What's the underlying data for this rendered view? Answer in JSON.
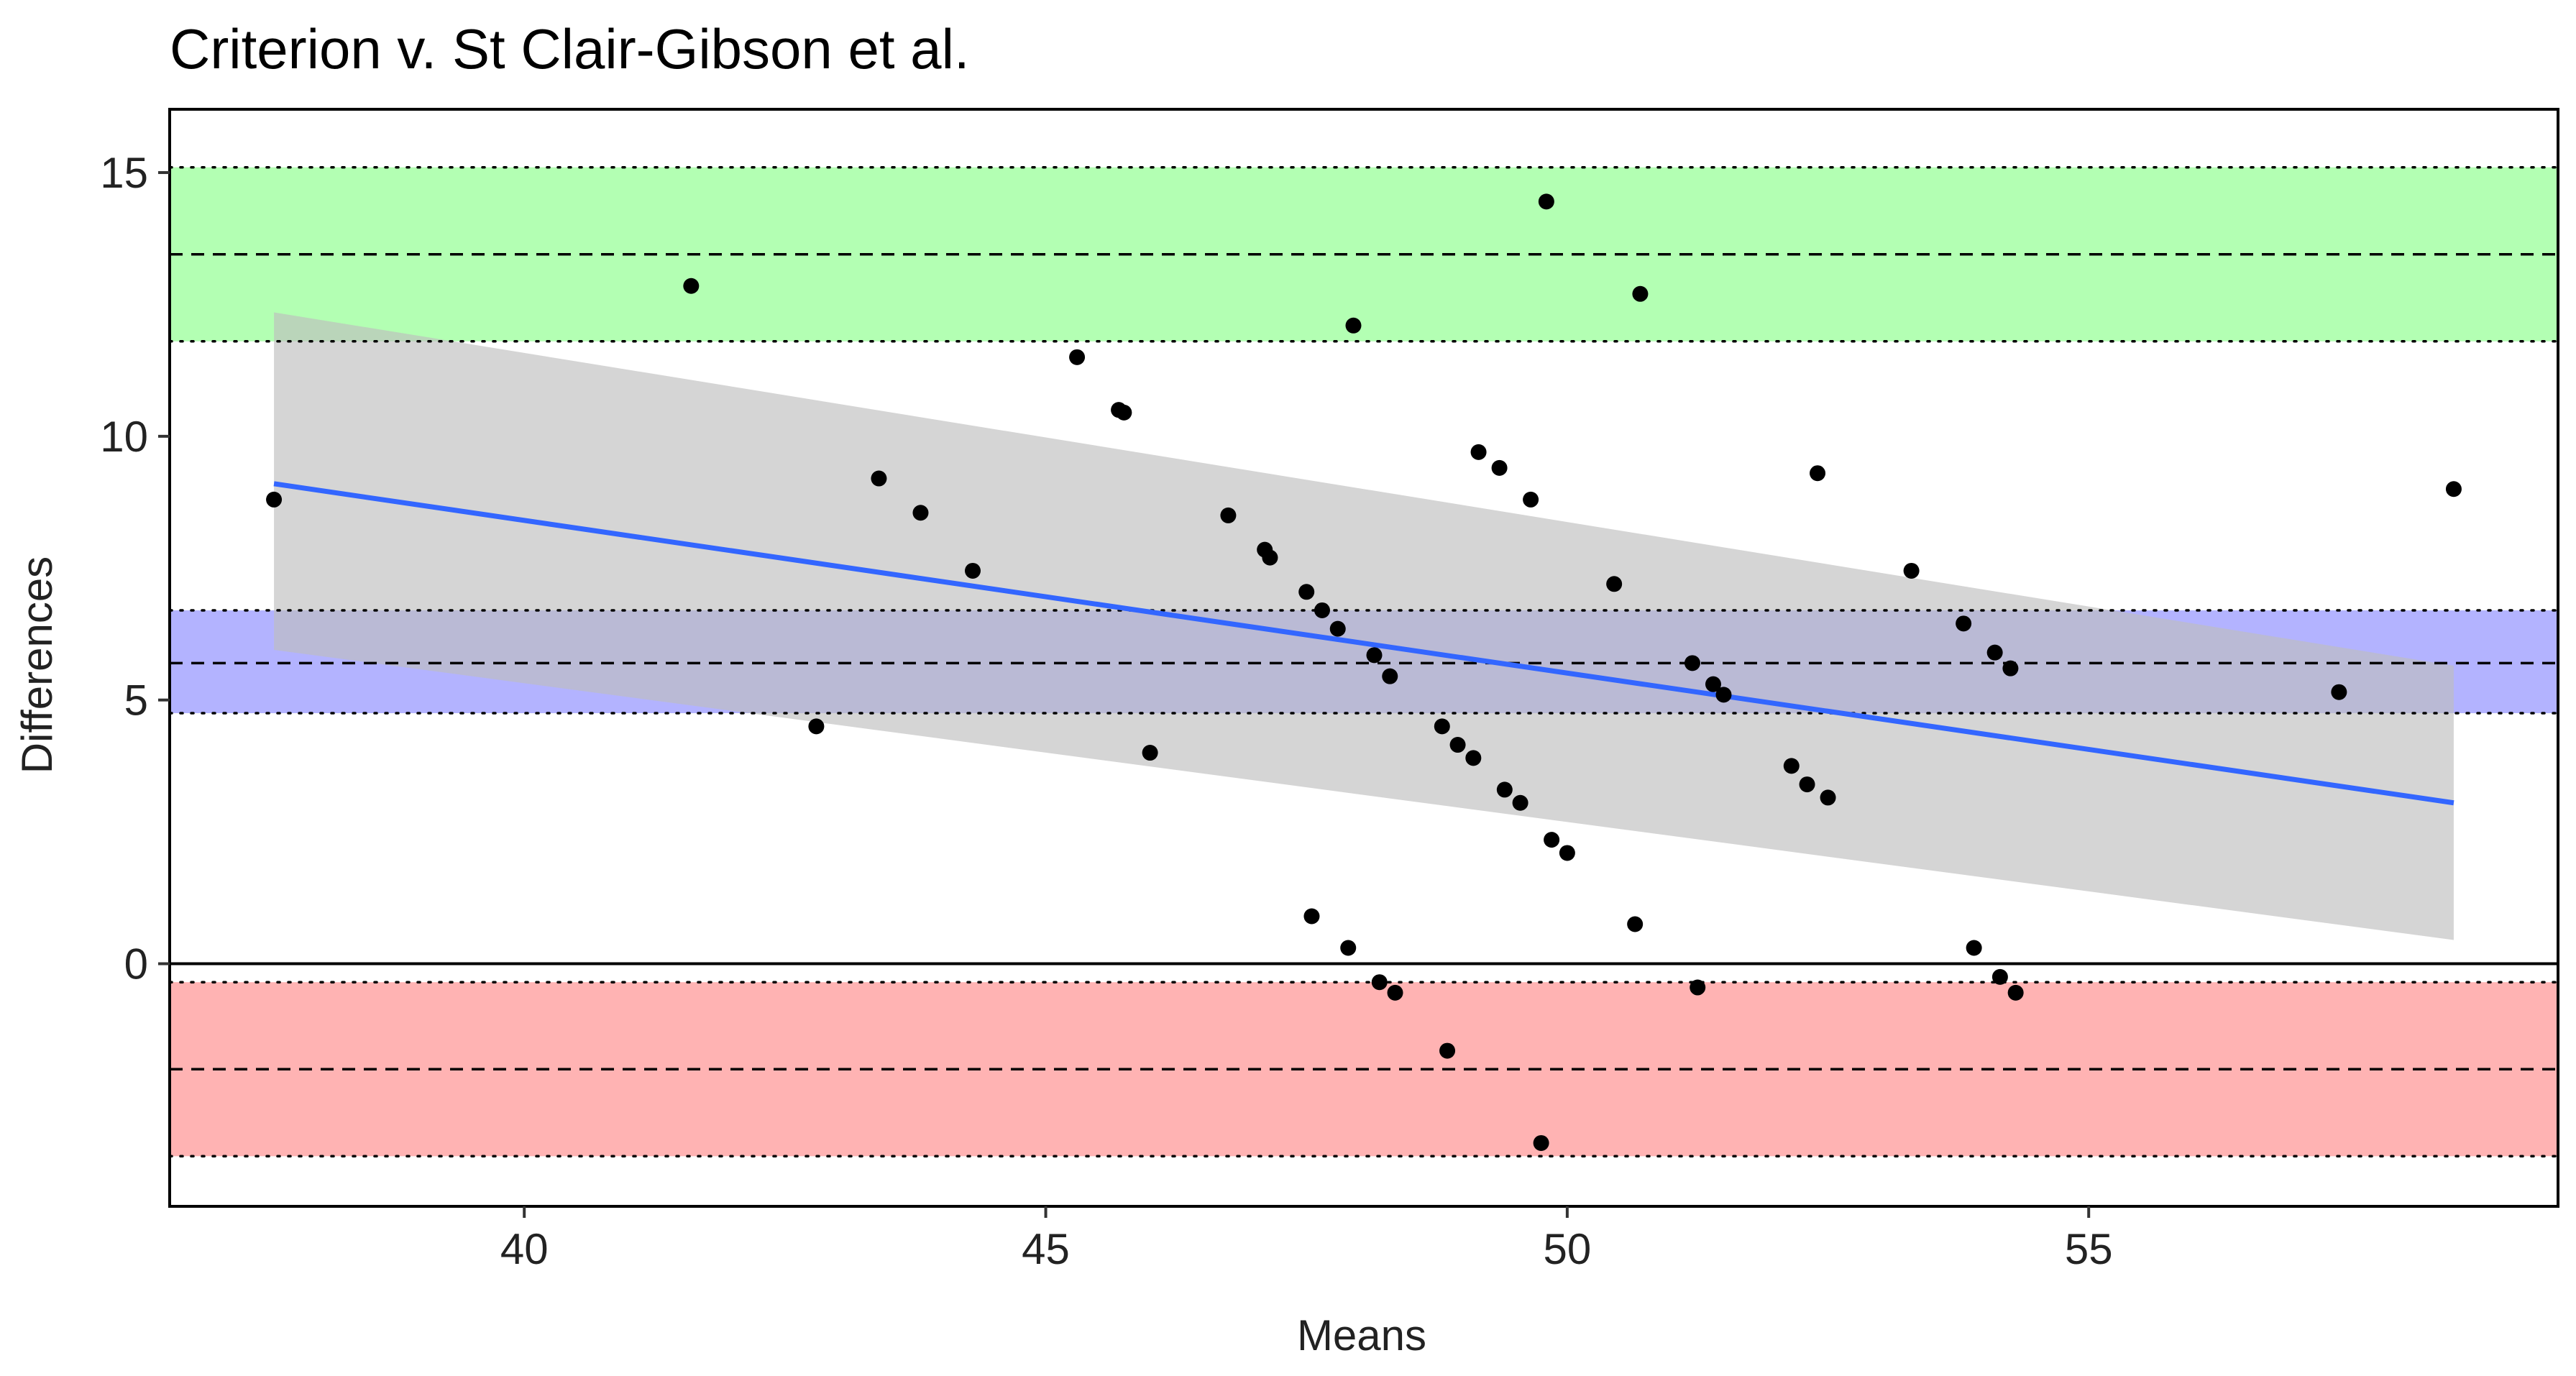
{
  "chart_data": {
    "type": "scatter",
    "title": "Criterion  v. St Clair-Gibson et al.",
    "xlabel": "Means",
    "ylabel": "Differences",
    "xlim": [
      36.6,
      59.5
    ],
    "ylim": [
      -4.6,
      16.2
    ],
    "xticks": [
      40,
      45,
      50,
      55
    ],
    "yticks": [
      0,
      5,
      10,
      15
    ],
    "grid": false,
    "legend": "none",
    "zero_line": 0,
    "bands": [
      {
        "kind": "upper limit of agreement",
        "center": 13.45,
        "lower": 11.8,
        "upper": 15.1,
        "color": "#b3ffb3"
      },
      {
        "kind": "mean difference (bias)",
        "center": 5.7,
        "lower": 4.75,
        "upper": 6.7,
        "color": "#b3b3ff"
      },
      {
        "kind": "lower limit of agreement",
        "center": -2.0,
        "lower": -3.65,
        "upper": -0.35,
        "color": "#ffb3b3"
      }
    ],
    "regression": {
      "line": [
        [
          37.6,
          9.1
        ],
        [
          58.5,
          3.05
        ]
      ],
      "ci_band": {
        "x": [
          37.6,
          58.5
        ],
        "upper": [
          12.35,
          5.65
        ],
        "lower": [
          5.95,
          0.45
        ]
      },
      "line_color": "#3366ff",
      "band_color": "#bfbfbf"
    },
    "points": [
      [
        37.6,
        8.8
      ],
      [
        41.6,
        12.85
      ],
      [
        42.8,
        4.5
      ],
      [
        43.4,
        9.2
      ],
      [
        43.8,
        8.55
      ],
      [
        44.3,
        7.45
      ],
      [
        45.3,
        11.5
      ],
      [
        45.7,
        10.5
      ],
      [
        45.75,
        10.45
      ],
      [
        46.0,
        4.0
      ],
      [
        46.75,
        8.5
      ],
      [
        47.1,
        7.85
      ],
      [
        47.15,
        7.7
      ],
      [
        47.5,
        7.05
      ],
      [
        47.55,
        0.9
      ],
      [
        47.65,
        6.7
      ],
      [
        47.8,
        6.35
      ],
      [
        47.9,
        0.3
      ],
      [
        47.95,
        12.1
      ],
      [
        48.15,
        5.85
      ],
      [
        48.2,
        -0.35
      ],
      [
        48.3,
        5.45
      ],
      [
        48.35,
        -0.55
      ],
      [
        48.8,
        4.5
      ],
      [
        48.85,
        -1.65
      ],
      [
        48.95,
        4.15
      ],
      [
        49.1,
        3.9
      ],
      [
        49.15,
        9.7
      ],
      [
        49.35,
        9.4
      ],
      [
        49.4,
        3.3
      ],
      [
        49.55,
        3.05
      ],
      [
        49.65,
        8.8
      ],
      [
        49.75,
        -3.4
      ],
      [
        49.8,
        14.45
      ],
      [
        49.85,
        2.35
      ],
      [
        50.0,
        2.1
      ],
      [
        50.45,
        7.2
      ],
      [
        50.65,
        0.75
      ],
      [
        50.7,
        12.7
      ],
      [
        51.2,
        5.7
      ],
      [
        51.25,
        -0.45
      ],
      [
        51.4,
        5.3
      ],
      [
        51.5,
        5.1
      ],
      [
        52.15,
        3.75
      ],
      [
        52.3,
        3.4
      ],
      [
        52.4,
        9.3
      ],
      [
        52.5,
        3.15
      ],
      [
        53.3,
        7.45
      ],
      [
        53.8,
        6.45
      ],
      [
        53.9,
        0.3
      ],
      [
        54.1,
        5.9
      ],
      [
        54.15,
        -0.25
      ],
      [
        54.25,
        5.6
      ],
      [
        54.3,
        -0.55
      ],
      [
        57.4,
        5.15
      ],
      [
        58.5,
        9.0
      ]
    ]
  }
}
